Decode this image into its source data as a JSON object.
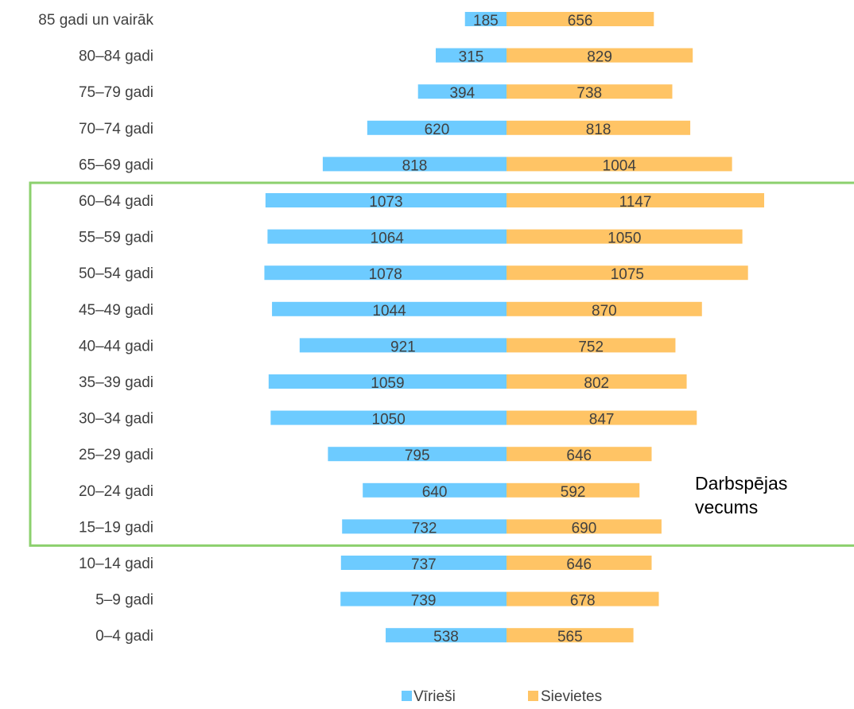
{
  "chart_data": {
    "type": "bar",
    "orientation": "horizontal-population-pyramid",
    "categories": [
      "85 gadi un vairāk",
      "80–84 gadi",
      "75–79 gadi",
      "70–74 gadi",
      "65–69 gadi",
      "60–64 gadi",
      "55–59 gadi",
      "50–54 gadi",
      "45–49 gadi",
      "40–44 gadi",
      "35–39 gadi",
      "30–34 gadi",
      "25–29 gadi",
      "20–24 gadi",
      "15–19 gadi",
      "10–14 gadi",
      "5–9 gadi",
      "0–4 gadi"
    ],
    "series": [
      {
        "name": "Vīrieši",
        "side": "left",
        "color": "#6DCBFF",
        "values": [
          185,
          315,
          394,
          620,
          818,
          1073,
          1064,
          1078,
          1044,
          921,
          1059,
          1050,
          795,
          640,
          732,
          737,
          739,
          538
        ]
      },
      {
        "name": "Sievietes",
        "side": "right",
        "color": "#FFC465",
        "values": [
          656,
          829,
          738,
          818,
          1004,
          1147,
          1050,
          1075,
          870,
          752,
          802,
          847,
          646,
          592,
          690,
          646,
          678,
          565
        ]
      }
    ],
    "title": "",
    "xlabel": "",
    "ylabel": "",
    "grid": false,
    "data_labels": true,
    "legend_position": "bottom",
    "highlight": {
      "label": "Darbspējas vecums",
      "line1": "Darbspējas",
      "line2": "vecums",
      "from_category": "60–64 gadi",
      "to_category": "15–19 gadi",
      "color": "#8CD06E"
    }
  }
}
